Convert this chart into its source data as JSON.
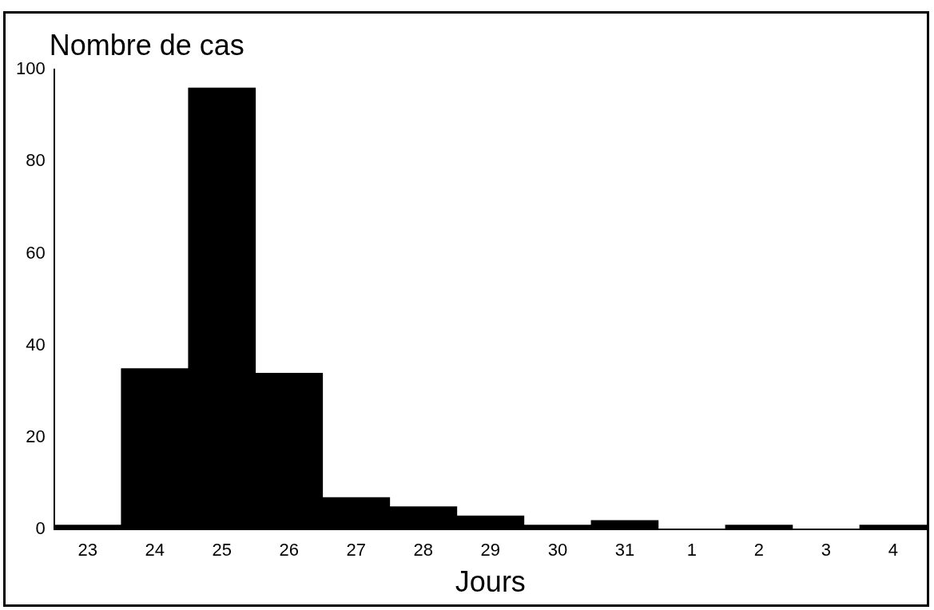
{
  "chart_data": {
    "type": "bar",
    "ylabel": "Nombre de cas",
    "xlabel": "Jours",
    "categories": [
      "23",
      "24",
      "25",
      "26",
      "27",
      "28",
      "29",
      "30",
      "31",
      "1",
      "2",
      "3",
      "4"
    ],
    "values": [
      1,
      35,
      96,
      34,
      7,
      5,
      3,
      1,
      2,
      0,
      1,
      0,
      1
    ],
    "color": "#000000",
    "ylim": [
      0,
      100
    ],
    "yticks": [
      0,
      20,
      40,
      60,
      80,
      100
    ],
    "grid": false,
    "legend": false
  }
}
